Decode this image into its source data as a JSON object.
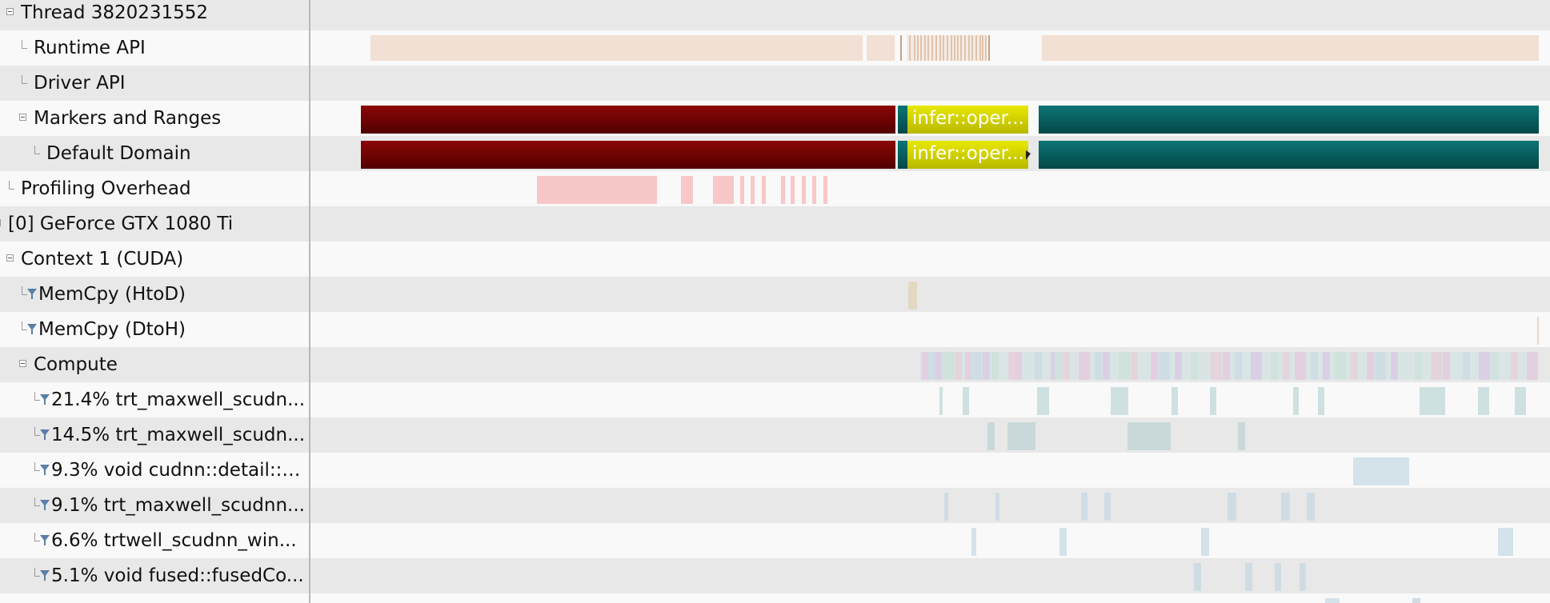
{
  "tree": {
    "rows": [
      {
        "label": "Thread 3820231552",
        "indent": 0,
        "icon": "collapse"
      },
      {
        "label": "Runtime API",
        "indent": 1,
        "icon": "leaf"
      },
      {
        "label": "Driver API",
        "indent": 1,
        "icon": "leaf"
      },
      {
        "label": "Markers and Ranges",
        "indent": 1,
        "icon": "collapse"
      },
      {
        "label": "Default Domain",
        "indent": 2,
        "icon": "leaf"
      },
      {
        "label": "Profiling Overhead",
        "indent": 0,
        "icon": "leaf"
      },
      {
        "label": "[0] GeForce GTX 1080 Ti",
        "indent": -1,
        "icon": "collapse"
      },
      {
        "label": "Context 1 (CUDA)",
        "indent": 0,
        "icon": "collapse"
      },
      {
        "label": "MemCpy (HtoD)",
        "indent": 1,
        "icon": "filter"
      },
      {
        "label": "MemCpy (DtoH)",
        "indent": 1,
        "icon": "filter"
      },
      {
        "label": "Compute",
        "indent": 1,
        "icon": "collapse"
      },
      {
        "label": "21.4% trt_maxwell_scudn...",
        "indent": 2,
        "icon": "filter"
      },
      {
        "label": "14.5% trt_maxwell_scudn...",
        "indent": 2,
        "icon": "filter"
      },
      {
        "label": "9.3% void cudnn::detail::e...",
        "indent": 2,
        "icon": "filter"
      },
      {
        "label": "9.1% trt_maxwell_scudnn...",
        "indent": 2,
        "icon": "filter"
      },
      {
        "label": "6.6% trtwell_scudnn_win...",
        "indent": 2,
        "icon": "filter"
      },
      {
        "label": "5.1% void fused::fusedCo...",
        "indent": 2,
        "icon": "filter"
      }
    ]
  },
  "timeline": {
    "marker_label": "infer::oper...",
    "default_domain_label": "infer::oper..."
  },
  "colors": {
    "marker_dark": "#6b0000",
    "marker_teal": "#055e5e",
    "marker_yellow": "#d0d000",
    "runtime_api": "#f2e0d4",
    "overhead": "#f8c7c7",
    "kernel": "#cfe0e0"
  }
}
